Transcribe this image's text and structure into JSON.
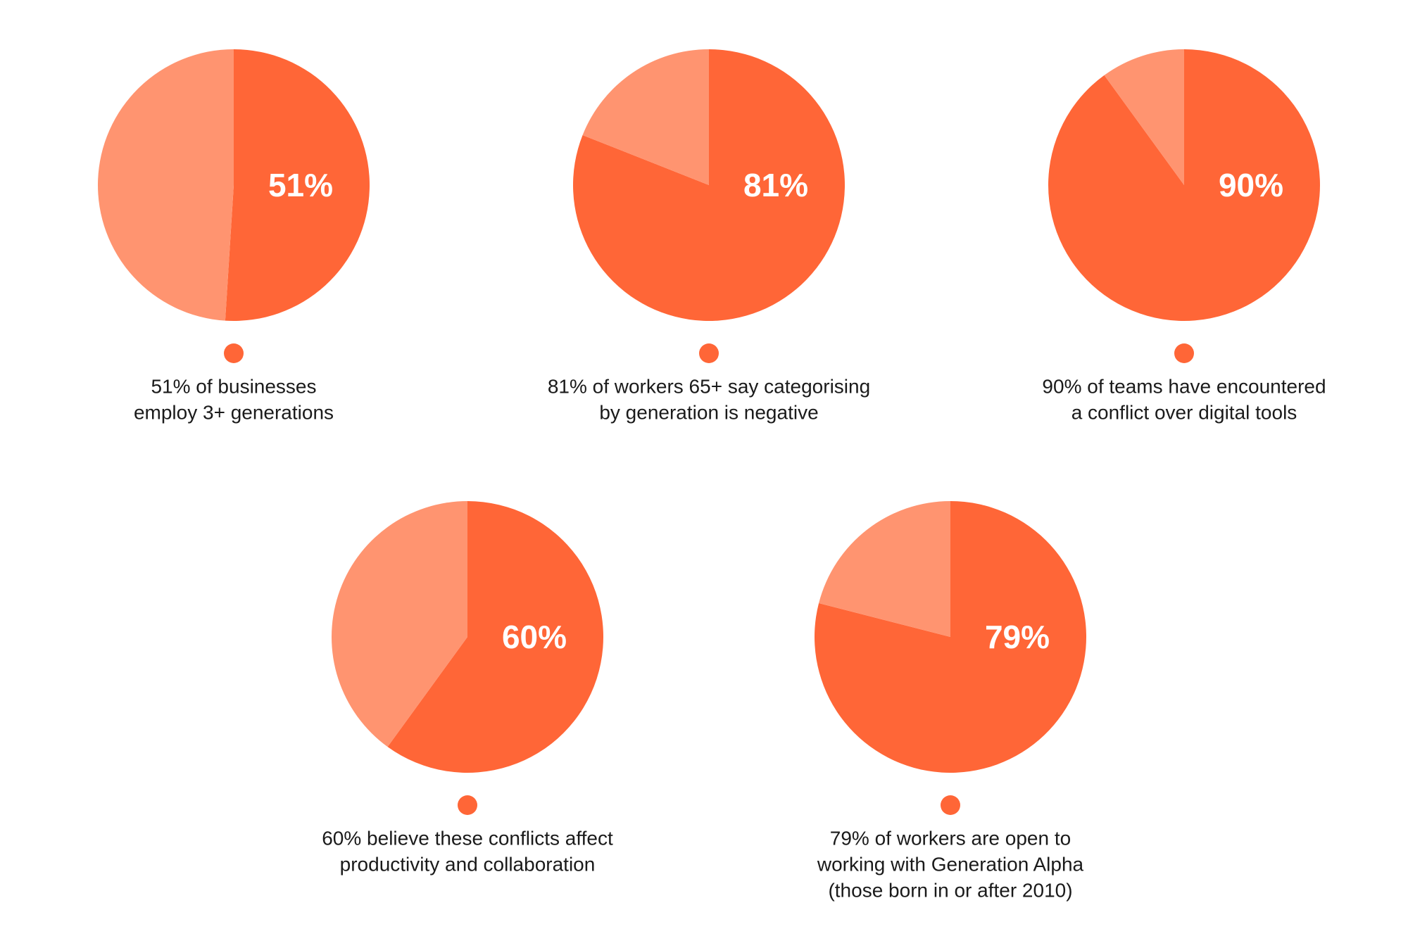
{
  "chart_data": [
    {
      "type": "pie",
      "values": [
        51,
        49
      ],
      "value_labels": [
        "51%",
        null
      ],
      "colors": [
        "#ff6637",
        "#ff9470"
      ],
      "caption": [
        "51% of businesses",
        "employ 3+ generations"
      ]
    },
    {
      "type": "pie",
      "values": [
        81,
        19
      ],
      "value_labels": [
        "81%",
        null
      ],
      "colors": [
        "#ff6637",
        "#ff9470"
      ],
      "caption": [
        "81% of workers 65+ say categorising",
        "by generation is negative"
      ]
    },
    {
      "type": "pie",
      "values": [
        90,
        10
      ],
      "value_labels": [
        "90%",
        null
      ],
      "colors": [
        "#ff6637",
        "#ff9470"
      ],
      "caption": [
        "90% of teams have encountered",
        "a conflict over digital tools"
      ]
    },
    {
      "type": "pie",
      "values": [
        60,
        40
      ],
      "value_labels": [
        "60%",
        null
      ],
      "colors": [
        "#ff6637",
        "#ff9470"
      ],
      "caption": [
        "60% believe these conflicts affect",
        "productivity and collaboration"
      ]
    },
    {
      "type": "pie",
      "values": [
        79,
        21
      ],
      "value_labels": [
        "79%",
        null
      ],
      "colors": [
        "#ff6637",
        "#ff9470"
      ],
      "caption": [
        "79% of workers are open to",
        "working with Generation Alpha",
        "(those born in or after 2010)"
      ]
    }
  ]
}
